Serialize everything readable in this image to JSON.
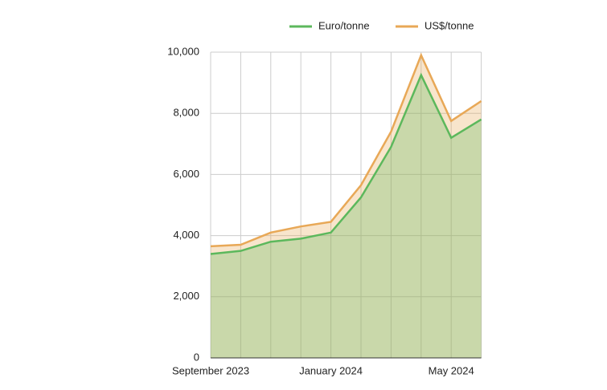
{
  "chart_data": {
    "type": "area",
    "categories": [
      "September 2023",
      null,
      null,
      null,
      "January 2024",
      null,
      null,
      null,
      "May 2024",
      null
    ],
    "series": [
      {
        "name": "Euro/tonne",
        "color": "#5cb85c",
        "values": [
          3400,
          3500,
          3800,
          3900,
          4100,
          5250,
          6900,
          9250,
          7200,
          7800
        ]
      },
      {
        "name": "US$/tonne",
        "color": "#e8a857",
        "values": [
          3650,
          3700,
          4100,
          4300,
          4450,
          5650,
          7400,
          9900,
          7750,
          8400
        ]
      }
    ],
    "ylim": [
      0,
      10000
    ],
    "yticks": [
      0,
      {
        "value": 2000,
        "label": "2,000"
      },
      {
        "value": 4000,
        "label": "4,000"
      },
      {
        "value": 6000,
        "label": "6,000"
      },
      {
        "value": 8000,
        "label": "8,000"
      },
      {
        "value": 10000,
        "label": "10,000"
      }
    ],
    "grid": true,
    "legend": "top"
  }
}
